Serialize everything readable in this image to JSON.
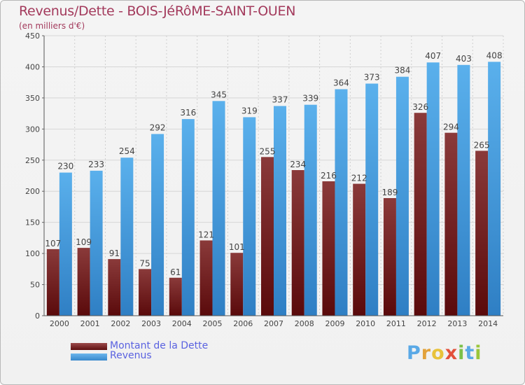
{
  "colors": {
    "title": "#a33a5c",
    "debt_top": "#8a3a3a",
    "debt_bottom": "#5a0a0b",
    "revenue_top": "#5ab0ec",
    "revenue_bottom": "#2f7fc4",
    "legend_text": "#5a62e0"
  },
  "logo": {
    "letters": [
      "P",
      "r",
      "o",
      "x",
      "i",
      "t",
      "i"
    ],
    "letter_colors": [
      "#5aa9e6",
      "#e2a23b",
      "#e8c23a",
      "#e2503a",
      "#7cc04a",
      "#5aa9e6",
      "#9ac63a"
    ]
  },
  "chart_data": {
    "type": "bar",
    "title": "Revenus/Dette - BOIS-JéRôME-SAINT-OUEN",
    "subtitle": "(en milliers d'€)",
    "categories": [
      "2000",
      "2001",
      "2002",
      "2003",
      "2004",
      "2005",
      "2006",
      "2007",
      "2008",
      "2009",
      "2010",
      "2011",
      "2012",
      "2013",
      "2014"
    ],
    "series": [
      {
        "name": "Montant de la Dette",
        "values": [
          107,
          109,
          91,
          75,
          61,
          121,
          101,
          255,
          234,
          216,
          212,
          189,
          326,
          294,
          265
        ]
      },
      {
        "name": "Revenus",
        "values": [
          230,
          233,
          254,
          292,
          316,
          345,
          319,
          337,
          339,
          364,
          373,
          384,
          407,
          403,
          408
        ]
      }
    ],
    "ylim": [
      0,
      450
    ],
    "yticks": [
      0,
      50,
      100,
      150,
      200,
      250,
      300,
      350,
      400,
      450
    ],
    "grid": "horizontal",
    "legend_position": "bottom-left"
  }
}
